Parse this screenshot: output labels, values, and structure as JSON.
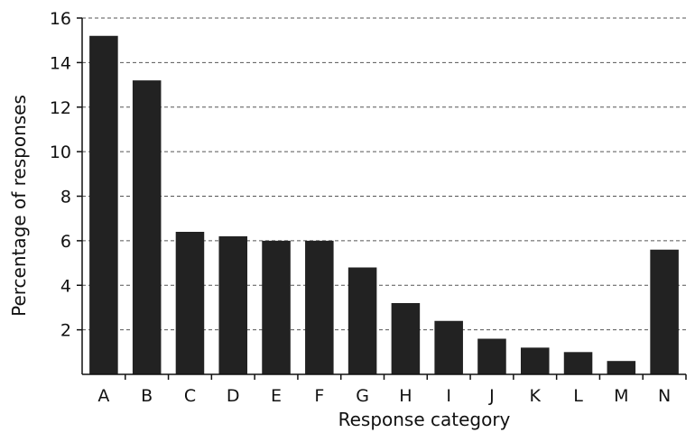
{
  "chart_data": {
    "type": "bar",
    "title": "",
    "xlabel": "Response category",
    "ylabel": "Percentage of responses",
    "categories": [
      "A",
      "B",
      "C",
      "D",
      "E",
      "F",
      "G",
      "H",
      "I",
      "J",
      "K",
      "L",
      "M",
      "N"
    ],
    "values": [
      15.2,
      13.2,
      6.4,
      6.2,
      6.0,
      6.0,
      4.8,
      3.2,
      2.4,
      1.6,
      1.2,
      1.0,
      0.6,
      5.6
    ],
    "ylim": [
      0,
      16
    ],
    "yticks": [
      2,
      4,
      6,
      8,
      10,
      12,
      14,
      16
    ],
    "grid": "horizontal dashed",
    "bar_color": "#222222",
    "grid_color": "#555555"
  }
}
